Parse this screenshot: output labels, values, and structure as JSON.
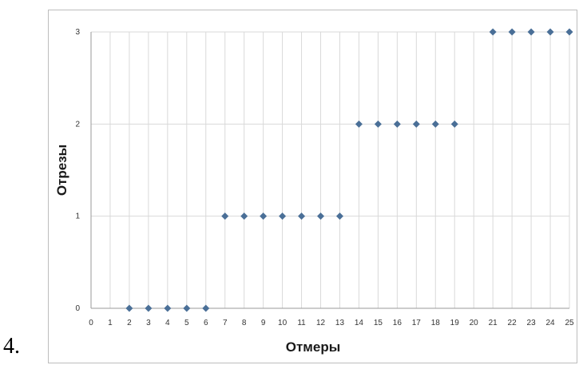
{
  "item_label": "4.",
  "chart_data": {
    "type": "scatter",
    "xlabel": "Отмеры",
    "ylabel": "Отрезы",
    "xlim": [
      0,
      25
    ],
    "ylim": [
      0,
      3
    ],
    "x_ticks": [
      "0",
      "1",
      "2",
      "3",
      "4",
      "5",
      "6",
      "7",
      "8",
      "9",
      "10",
      "11",
      "12",
      "13",
      "14",
      "15",
      "16",
      "17",
      "18",
      "19",
      "20",
      "21",
      "22",
      "23",
      "24",
      "25"
    ],
    "y_ticks": [
      "0",
      "1",
      "2",
      "3"
    ],
    "grid": true,
    "marker_color": "#4a6f97",
    "points": [
      {
        "x": 2,
        "y": 0
      },
      {
        "x": 3,
        "y": 0
      },
      {
        "x": 4,
        "y": 0
      },
      {
        "x": 5,
        "y": 0
      },
      {
        "x": 6,
        "y": 0
      },
      {
        "x": 7,
        "y": 1
      },
      {
        "x": 8,
        "y": 1
      },
      {
        "x": 9,
        "y": 1
      },
      {
        "x": 10,
        "y": 1
      },
      {
        "x": 11,
        "y": 1
      },
      {
        "x": 12,
        "y": 1
      },
      {
        "x": 13,
        "y": 1
      },
      {
        "x": 14,
        "y": 2
      },
      {
        "x": 15,
        "y": 2
      },
      {
        "x": 16,
        "y": 2
      },
      {
        "x": 17,
        "y": 2
      },
      {
        "x": 18,
        "y": 2
      },
      {
        "x": 19,
        "y": 2
      },
      {
        "x": 21,
        "y": 3
      },
      {
        "x": 22,
        "y": 3
      },
      {
        "x": 23,
        "y": 3
      },
      {
        "x": 24,
        "y": 3
      },
      {
        "x": 25,
        "y": 3
      }
    ]
  }
}
